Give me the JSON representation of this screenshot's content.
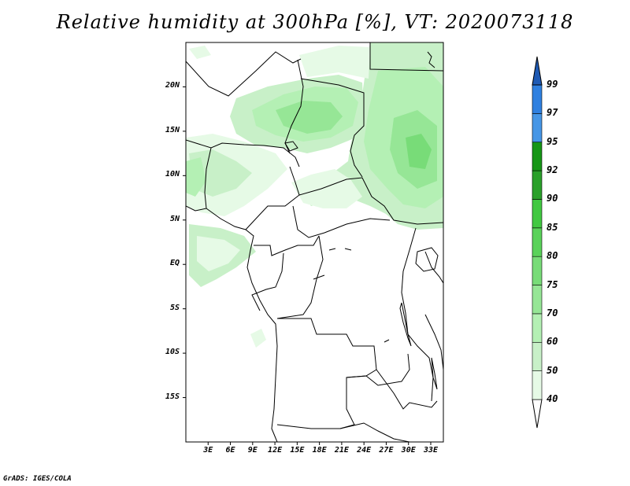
{
  "title": "Relative humidity at 300hPa [%], VT: 2020073118",
  "credit": "GrADS: IGES/COLA",
  "map": {
    "lat_labels": [
      "20N",
      "15N",
      "10N",
      "5N",
      "EQ",
      "5S",
      "10S",
      "15S"
    ],
    "lat_values": [
      20,
      15,
      10,
      5,
      0,
      -5,
      -10,
      -15
    ],
    "lon_labels": [
      "3E",
      "6E",
      "9E",
      "12E",
      "15E",
      "18E",
      "21E",
      "24E",
      "27E",
      "30E",
      "33E"
    ],
    "lon_values": [
      3,
      6,
      9,
      12,
      15,
      18,
      21,
      24,
      27,
      30,
      33
    ],
    "lon_range": [
      0,
      34.7
    ],
    "lat_range": [
      -20,
      25
    ]
  },
  "colorbar": {
    "levels": [
      "40",
      "50",
      "60",
      "70",
      "75",
      "80",
      "85",
      "90",
      "92",
      "95",
      "97",
      "99"
    ],
    "colors": [
      "#e6fae6",
      "#c8f0c8",
      "#b4f0b4",
      "#96e696",
      "#78dc78",
      "#5ad25a",
      "#41c841",
      "#2aa02a",
      "#169616",
      "#4696e6",
      "#2f80e0",
      "#1e64c8"
    ],
    "under_color": "#ffffff",
    "over_color": "#1e5ab4"
  }
}
